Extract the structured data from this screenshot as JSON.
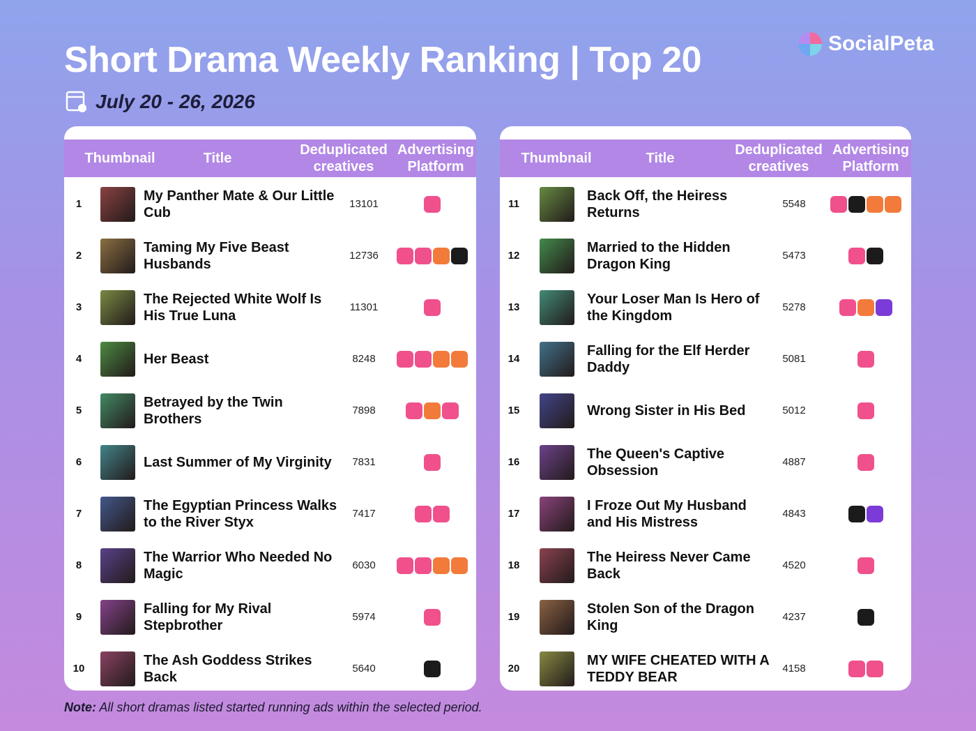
{
  "header": {
    "title": "Short Drama Weekly Ranking | Top 20",
    "date": "July 20 - 26, 2026",
    "brand": "SocialPeta"
  },
  "tables": [
    {
      "columns": [
        "Thumbnail",
        "Title",
        "Deduplicated creatives",
        "Advertising Platform"
      ],
      "rows": [
        [
          1,
          "My Panther Mate & Our Little Cub",
          13101
        ],
        [
          2,
          "Taming My Five Beast Husbands",
          12736
        ],
        [
          3,
          "The Rejected White Wolf Is His True Luna",
          11301
        ],
        [
          4,
          "Her Beast",
          8248
        ],
        [
          5,
          "Betrayed by the Twin Brothers",
          7898
        ],
        [
          6,
          "Last Summer of My Virginity",
          7831
        ],
        [
          7,
          "The Egyptian Princess Walks to the River Styx",
          7417
        ],
        [
          8,
          "The Warrior Who Needed No Magic",
          6030
        ],
        [
          9,
          "Falling for My Rival Stepbrother",
          5974
        ],
        [
          10,
          "The Ash Goddess Strikes Back",
          5640
        ]
      ]
    },
    {
      "columns": [
        "Thumbnail",
        "Title",
        "Deduplicated creatives",
        "Advertising Platform"
      ],
      "rows": [
        [
          11,
          "Back Off, the Heiress Returns",
          5548
        ],
        [
          12,
          "Married to the Hidden Dragon King",
          5473
        ],
        [
          13,
          "Your Loser Man Is Hero of the Kingdom",
          5278
        ],
        [
          14,
          "Falling for the Elf Herder Daddy",
          5081
        ],
        [
          15,
          "Wrong Sister in His Bed",
          5012
        ],
        [
          16,
          "The Queen's Captive Obsession",
          4887
        ],
        [
          17,
          "I Froze Out My Husband and His Mistress",
          4843
        ],
        [
          18,
          "The Heiress Never Came Back",
          4520
        ],
        [
          19,
          "Stolen Son of the Dragon King",
          4237
        ],
        [
          20,
          "MY WIFE CHEATED WITH A TEDDY BEAR",
          4158
        ]
      ]
    }
  ],
  "note": {
    "label": "Note:",
    "text": "All short dramas listed started running ads within the selected period."
  }
}
